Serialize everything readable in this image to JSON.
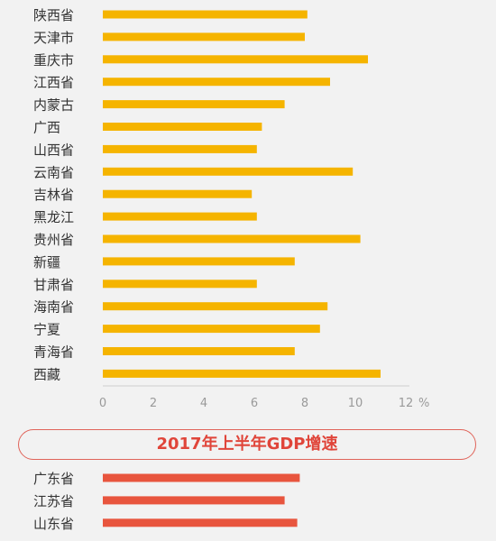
{
  "chart_data": [
    {
      "type": "bar",
      "orientation": "horizontal",
      "categories": [
        "陕西省",
        "天津市",
        "重庆市",
        "江西省",
        "内蒙古",
        "广西",
        "山西省",
        "云南省",
        "吉林省",
        "黑龙江",
        "贵州省",
        "新疆",
        "甘肃省",
        "海南省",
        "宁夏",
        "青海省",
        "西藏"
      ],
      "values": [
        8.1,
        8.0,
        10.5,
        9.0,
        7.2,
        6.3,
        6.1,
        9.9,
        5.9,
        6.1,
        10.2,
        7.6,
        6.1,
        8.9,
        8.6,
        7.6,
        11.0
      ],
      "xlim": [
        0,
        12
      ],
      "ticks": [
        "0",
        "2",
        "4",
        "6",
        "8",
        "10",
        "12"
      ],
      "unit": "%",
      "color": "#f5b400"
    },
    {
      "type": "bar",
      "orientation": "horizontal",
      "title": "2017年上半年GDP增速",
      "categories": [
        "广东省",
        "江苏省",
        "山东省"
      ],
      "values": [
        7.8,
        7.2,
        7.7
      ],
      "xlim": [
        0,
        12
      ],
      "color": "#e8553e"
    }
  ]
}
